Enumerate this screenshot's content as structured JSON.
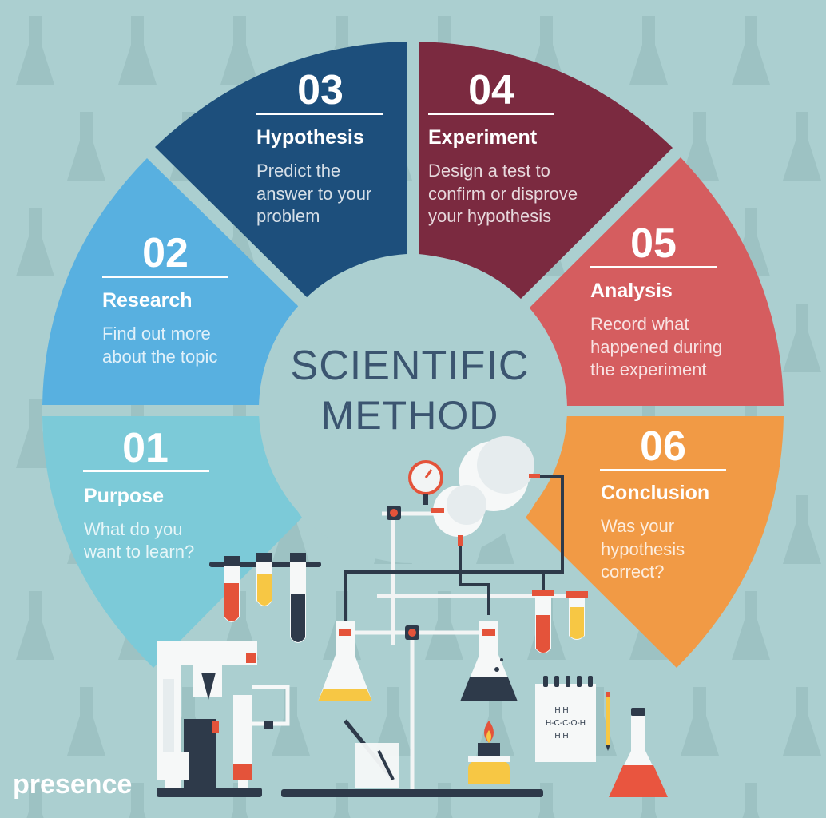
{
  "title_line1": "SCIENTIFIC",
  "title_line2": "METHOD",
  "brand": "presence",
  "colors": {
    "background": "#abcfd0",
    "purpose": "#7ccad8",
    "research": "#58b0e0",
    "hypothesis": "#1d4f7c",
    "experiment": "#7b2a40",
    "analysis": "#d55d5f",
    "conclusion": "#f19a45",
    "title_text": "#3b5570"
  },
  "steps": [
    {
      "number": "01",
      "title": "Purpose",
      "desc": [
        "What do you",
        "want to learn?"
      ]
    },
    {
      "number": "02",
      "title": "Research",
      "desc": [
        "Find out more",
        "about the topic"
      ]
    },
    {
      "number": "03",
      "title": "Hypothesis",
      "desc": [
        "Predict the",
        "answer to your",
        "problem"
      ]
    },
    {
      "number": "04",
      "title": "Experiment",
      "desc": [
        "Design a test to",
        "confirm or disprove",
        "your hypothesis"
      ]
    },
    {
      "number": "05",
      "title": "Analysis",
      "desc": [
        "Record what",
        "happened during",
        "the experiment"
      ]
    },
    {
      "number": "06",
      "title": "Conclusion",
      "desc": [
        "Was your",
        "hypothesis",
        "correct?"
      ]
    }
  ],
  "notepad_formula": [
    "H H",
    "H-C-C-O-H",
    "H H"
  ]
}
